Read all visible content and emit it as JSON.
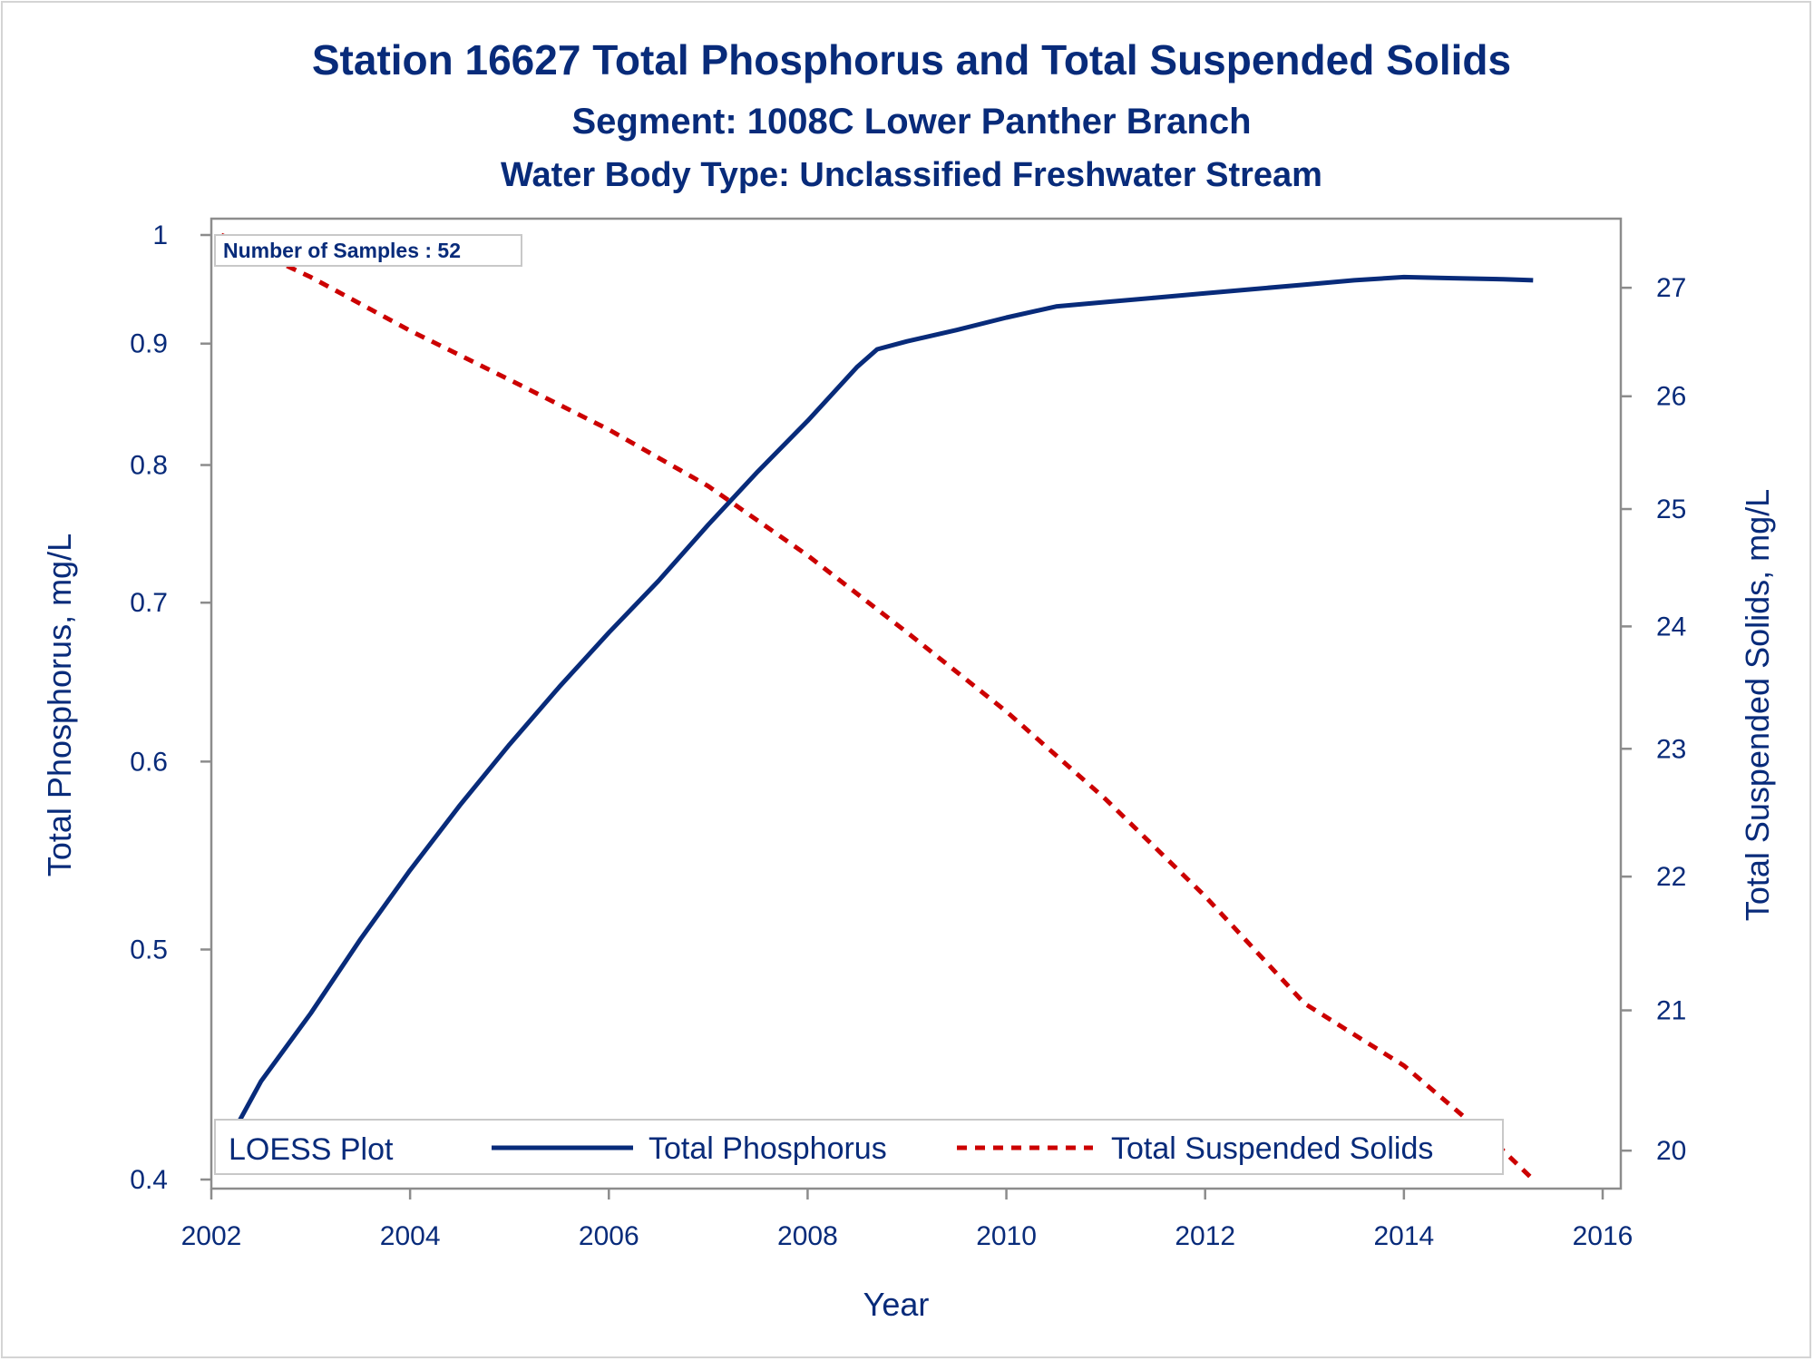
{
  "titles": {
    "line1": "Station 16627  Total Phosphorus and Total Suspended Solids",
    "line2": "Segment: 1008C  Lower Panther Branch",
    "line3": "Water Body Type: Unclassified Freshwater Stream"
  },
  "inset": {
    "label": "Number of Samples : 52"
  },
  "legend": {
    "title": "LOESS Plot",
    "tp_label": "Total Phosphorus",
    "tss_label": "Total Suspended Solids"
  },
  "colors": {
    "tp": "#082b7a",
    "tss": "#cc0000",
    "frame": "#8c8c8c",
    "text": "#082b7a"
  },
  "chart_data": {
    "type": "line",
    "xlabel": "Year",
    "ylabel_left": "Total Phosphorus, mg/L",
    "ylabel_right": "Total Suspended Solids, mg/L",
    "x_ticks": [
      2002,
      2004,
      2006,
      2008,
      2010,
      2012,
      2014,
      2016
    ],
    "y_left_ticks": [
      0.4,
      0.5,
      0.6,
      0.7,
      0.8,
      0.9,
      1
    ],
    "y_left_scale": "log",
    "y_right_ticks": [
      20,
      21,
      22,
      23,
      24,
      25,
      26,
      27
    ],
    "y_right_scale": "log",
    "xlim": [
      2002,
      2016
    ],
    "ylim_left": [
      0.4,
      1
    ],
    "ylim_right": [
      19.8,
      27.5
    ],
    "grid": false,
    "legend_position": "bottom-inside",
    "series": [
      {
        "name": "Total Phosphorus",
        "axis": "left",
        "style": "solid",
        "x": [
          2002.1,
          2002.5,
          2003.0,
          2003.5,
          2004.0,
          2004.5,
          2005.0,
          2005.5,
          2006.0,
          2006.5,
          2007.0,
          2007.5,
          2008.0,
          2008.5,
          2008.7,
          2009.0,
          2009.5,
          2010.0,
          2010.5,
          2011.0,
          2011.5,
          2012.0,
          2012.5,
          2013.0,
          2013.5,
          2014.0,
          2014.5,
          2015.0,
          2015.3
        ],
        "y": [
          0.41,
          0.44,
          0.47,
          0.505,
          0.54,
          0.575,
          0.61,
          0.645,
          0.68,
          0.715,
          0.755,
          0.795,
          0.835,
          0.88,
          0.895,
          0.902,
          0.912,
          0.923,
          0.933,
          0.937,
          0.941,
          0.945,
          0.949,
          0.953,
          0.957,
          0.96,
          0.959,
          0.958,
          0.957
        ]
      },
      {
        "name": "Total Suspended Solids",
        "axis": "right",
        "style": "dashed",
        "x": [
          2002.1,
          2003.0,
          2004.0,
          2005.0,
          2006.0,
          2007.0,
          2008.0,
          2009.0,
          2010.0,
          2011.0,
          2012.0,
          2013.0,
          2014.0,
          2014.5,
          2015.0,
          2015.3
        ],
        "y": [
          27.5,
          27.1,
          26.6,
          26.15,
          25.7,
          25.2,
          24.6,
          23.95,
          23.3,
          22.6,
          21.85,
          21.05,
          20.6,
          20.3,
          20.0,
          19.8
        ]
      }
    ]
  }
}
